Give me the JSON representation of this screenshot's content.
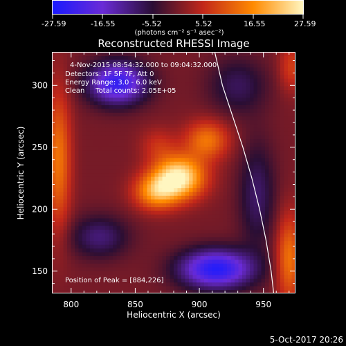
{
  "colorbar": {
    "tick_labels": [
      "-27.59",
      "-16.55",
      "-5.52",
      "5.52",
      "16.55",
      "27.59"
    ],
    "units": "(photons cm⁻² s⁻¹ asec⁻²)",
    "range": [
      -27.59,
      27.59
    ],
    "colors": [
      "#1a1aff",
      "#6a2bd6",
      "#2a0e34",
      "#c2271a",
      "#ff8a00",
      "#fff6c0"
    ]
  },
  "chart_data": {
    "type": "heatmap",
    "title": "Reconstructed RHESSI Image",
    "xlabel": "Heliocentric X (arcsec)",
    "ylabel": "Heliocentric Y (arcsec)",
    "xlim": [
      785,
      975
    ],
    "ylim": [
      132,
      327
    ],
    "xticks": [
      800,
      850,
      900,
      950
    ],
    "yticks": [
      150,
      200,
      250,
      300
    ],
    "peak": [
      884,
      226
    ],
    "annotations": [
      "4-Nov-2015 08:54:32.000 to 09:04:32.000",
      "Detectors: 1F 5F 7F, Att 0",
      "Energy Range: 3.0 - 6.0 keV",
      "Clean     Total counts: 2.05E+05",
      "Position of Peak = [884,226]"
    ],
    "sources": [
      {
        "x": 884,
        "y": 226,
        "amp": 27.6,
        "sx": 14,
        "sy": 12
      },
      {
        "x": 866,
        "y": 214,
        "amp": 17,
        "sx": 12,
        "sy": 10
      },
      {
        "x": 906,
        "y": 256,
        "amp": 14,
        "sx": 12,
        "sy": 11
      },
      {
        "x": 868,
        "y": 252,
        "amp": 6,
        "sx": 10,
        "sy": 10
      },
      {
        "x": 836,
        "y": 302,
        "amp": -24,
        "sx": 16,
        "sy": 12
      },
      {
        "x": 913,
        "y": 152,
        "amp": -26,
        "sx": 20,
        "sy": 11
      },
      {
        "x": 822,
        "y": 178,
        "amp": -10,
        "sx": 16,
        "sy": 12
      },
      {
        "x": 945,
        "y": 212,
        "amp": -9,
        "sx": 10,
        "sy": 30
      },
      {
        "x": 930,
        "y": 300,
        "amp": -8,
        "sx": 16,
        "sy": 16
      },
      {
        "x": 790,
        "y": 240,
        "amp": 14,
        "sx": 7,
        "sy": 40
      },
      {
        "x": 970,
        "y": 160,
        "amp": 14,
        "sx": 7,
        "sy": 25
      },
      {
        "x": 972,
        "y": 315,
        "amp": 8,
        "sx": 7,
        "sy": 14
      }
    ],
    "limb": [
      [
        912,
        327
      ],
      [
        918,
        300
      ],
      [
        926,
        275
      ],
      [
        934,
        250
      ],
      [
        941,
        225
      ],
      [
        947,
        200
      ],
      [
        952,
        175
      ],
      [
        956,
        150
      ],
      [
        958,
        132
      ]
    ]
  },
  "footer": {
    "date": "5-Oct-2017 20:26"
  }
}
